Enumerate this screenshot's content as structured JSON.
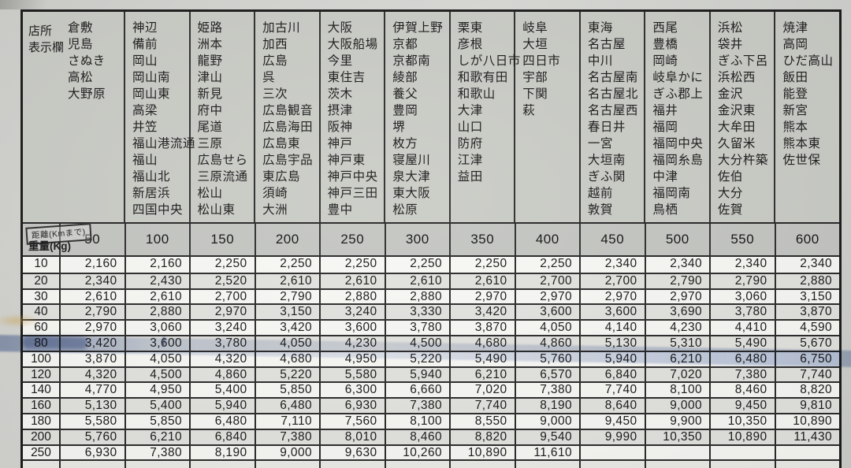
{
  "corner": {
    "line1": "店所",
    "line2": "表示欄"
  },
  "axis": {
    "distance_label": "距離(Kmまで)",
    "weight_label": "重量(Kg)"
  },
  "distance_columns": [
    {
      "distance": "50",
      "cities": [
        "倉敷",
        "児島",
        "さぬき",
        "高松",
        "大野原"
      ]
    },
    {
      "distance": "100",
      "cities": [
        "神辺",
        "備前",
        "岡山",
        "岡山南",
        "岡山東",
        "高梁",
        "井笠",
        "福山港流通",
        "福山",
        "福山北",
        "新居浜",
        "四国中央"
      ]
    },
    {
      "distance": "150",
      "cities": [
        "姫路",
        "洲本",
        "龍野",
        "津山",
        "新見",
        "府中",
        "尾道",
        "三原",
        "広島せら",
        "三原流通",
        "松山",
        "松山東"
      ]
    },
    {
      "distance": "200",
      "cities": [
        "加古川",
        "加西",
        "広島",
        "呉",
        "三次",
        "広島観音",
        "広島海田",
        "広島東",
        "広島宇品",
        "東広島",
        "須崎",
        "大洲"
      ]
    },
    {
      "distance": "250",
      "cities": [
        "大阪",
        "大阪船場",
        "今里",
        "東住吉",
        "茨木",
        "摂津",
        "阪神",
        "神戸",
        "神戸東",
        "神戸中央",
        "神戸三田",
        "豊中"
      ]
    },
    {
      "distance": "300",
      "cities": [
        "伊賀上野",
        "京都",
        "京都南",
        "綾部",
        "養父",
        "豊岡",
        "堺",
        "枚方",
        "寝屋川",
        "泉大津",
        "東大阪",
        "松原"
      ]
    },
    {
      "distance": "350",
      "cities": [
        "栗東",
        "彦根",
        "しが八日市",
        "和歌有田",
        "和歌山",
        "大津",
        "山口",
        "防府",
        "江津",
        "益田"
      ]
    },
    {
      "distance": "400",
      "cities": [
        "岐阜",
        "大垣",
        "四日市",
        "宇部",
        "下関",
        "萩"
      ]
    },
    {
      "distance": "450",
      "cities": [
        "東海",
        "名古屋",
        "中川",
        "名古屋南",
        "名古屋北",
        "名古屋西",
        "春日井",
        "一宮",
        "大垣南",
        "ぎふ関",
        "越前",
        "敦賀"
      ]
    },
    {
      "distance": "500",
      "cities": [
        "西尾",
        "豊橋",
        "岡崎",
        "岐阜かに",
        "ぎふ郡上",
        "福井",
        "福岡",
        "福岡中央",
        "福岡糸島",
        "中津",
        "福岡南",
        "鳥栖"
      ]
    },
    {
      "distance": "550",
      "cities": [
        "浜松",
        "袋井",
        "ぎふ下呂",
        "浜松西",
        "金沢",
        "金沢東",
        "大牟田",
        "久留米",
        "大分杵築",
        "佐伯",
        "大分",
        "佐賀"
      ]
    },
    {
      "distance": "600",
      "cities": [
        "焼津",
        "高岡",
        "ひだ高山",
        "飯田",
        "能登",
        "新宮",
        "熊本",
        "熊本東",
        "佐世保"
      ]
    }
  ],
  "weight_rows": [
    {
      "weight": "10",
      "highlight": false,
      "values": [
        "2,160",
        "2,160",
        "2,250",
        "2,250",
        "2,250",
        "2,250",
        "2,250",
        "2,250",
        "2,340",
        "2,340",
        "2,340",
        "2,340"
      ]
    },
    {
      "weight": "20",
      "highlight": false,
      "values": [
        "2,340",
        "2,430",
        "2,520",
        "2,610",
        "2,610",
        "2,610",
        "2,610",
        "2,700",
        "2,700",
        "2,790",
        "2,790",
        "2,880"
      ]
    },
    {
      "weight": "30",
      "highlight": false,
      "values": [
        "2,610",
        "2,610",
        "2,700",
        "2,790",
        "2,880",
        "2,880",
        "2,970",
        "2,970",
        "2,970",
        "2,970",
        "3,060",
        "3,150"
      ]
    },
    {
      "weight": "40",
      "highlight": false,
      "values": [
        "2,790",
        "2,880",
        "2,970",
        "3,150",
        "3,240",
        "3,330",
        "3,420",
        "3,600",
        "3,600",
        "3,690",
        "3,780",
        "3,870"
      ]
    },
    {
      "weight": "60",
      "highlight": false,
      "values": [
        "2,970",
        "3,060",
        "3,240",
        "3,420",
        "3,600",
        "3,780",
        "3,870",
        "4,050",
        "4,140",
        "4,230",
        "4,410",
        "4,590"
      ]
    },
    {
      "weight": "80",
      "highlight": true,
      "values": [
        "3,420",
        "3,600",
        "3,780",
        "4,050",
        "4,230",
        "4,500",
        "4,680",
        "4,860",
        "5,130",
        "5,310",
        "5,490",
        "5,670"
      ]
    },
    {
      "weight": "100",
      "highlight": false,
      "values": [
        "3,870",
        "4,050",
        "4,320",
        "4,680",
        "4,950",
        "5,220",
        "5,490",
        "5,760",
        "5,940",
        "6,210",
        "6,480",
        "6,750"
      ]
    },
    {
      "weight": "120",
      "highlight": false,
      "values": [
        "4,320",
        "4,500",
        "4,860",
        "5,220",
        "5,580",
        "5,940",
        "6,210",
        "6,570",
        "6,840",
        "7,020",
        "7,380",
        "7,740"
      ]
    },
    {
      "weight": "140",
      "highlight": false,
      "values": [
        "4,770",
        "4,950",
        "5,400",
        "5,850",
        "6,300",
        "6,660",
        "7,020",
        "7,380",
        "7,740",
        "8,100",
        "8,460",
        "8,820"
      ]
    },
    {
      "weight": "160",
      "highlight": false,
      "values": [
        "5,130",
        "5,400",
        "5,940",
        "6,480",
        "6,930",
        "7,380",
        "7,740",
        "8,190",
        "8,640",
        "9,000",
        "9,450",
        "9,810"
      ]
    },
    {
      "weight": "180",
      "highlight": false,
      "values": [
        "5,580",
        "5,850",
        "6,480",
        "7,110",
        "7,560",
        "8,100",
        "8,550",
        "9,000",
        "9,450",
        "9,900",
        "10,350",
        "10,890"
      ]
    },
    {
      "weight": "200",
      "highlight": false,
      "values": [
        "5,760",
        "6,210",
        "6,840",
        "7,380",
        "8,010",
        "8,460",
        "8,820",
        "9,540",
        "9,990",
        "10,350",
        "10,890",
        "11,430"
      ]
    },
    {
      "weight": "250",
      "highlight": false,
      "values": [
        "6,930",
        "7,380",
        "8,190",
        "9,000",
        "9,630",
        "10,260",
        "10,890",
        "11,610",
        "",
        "",
        "",
        ""
      ]
    }
  ],
  "colors": {
    "highlight_marker": "#6d8fc0",
    "names_bg": "#c9cbc5",
    "header_bg": "#c3c5c1",
    "row_bg": "#f8f8f5",
    "row_alt_bg": "#e2e2de"
  }
}
